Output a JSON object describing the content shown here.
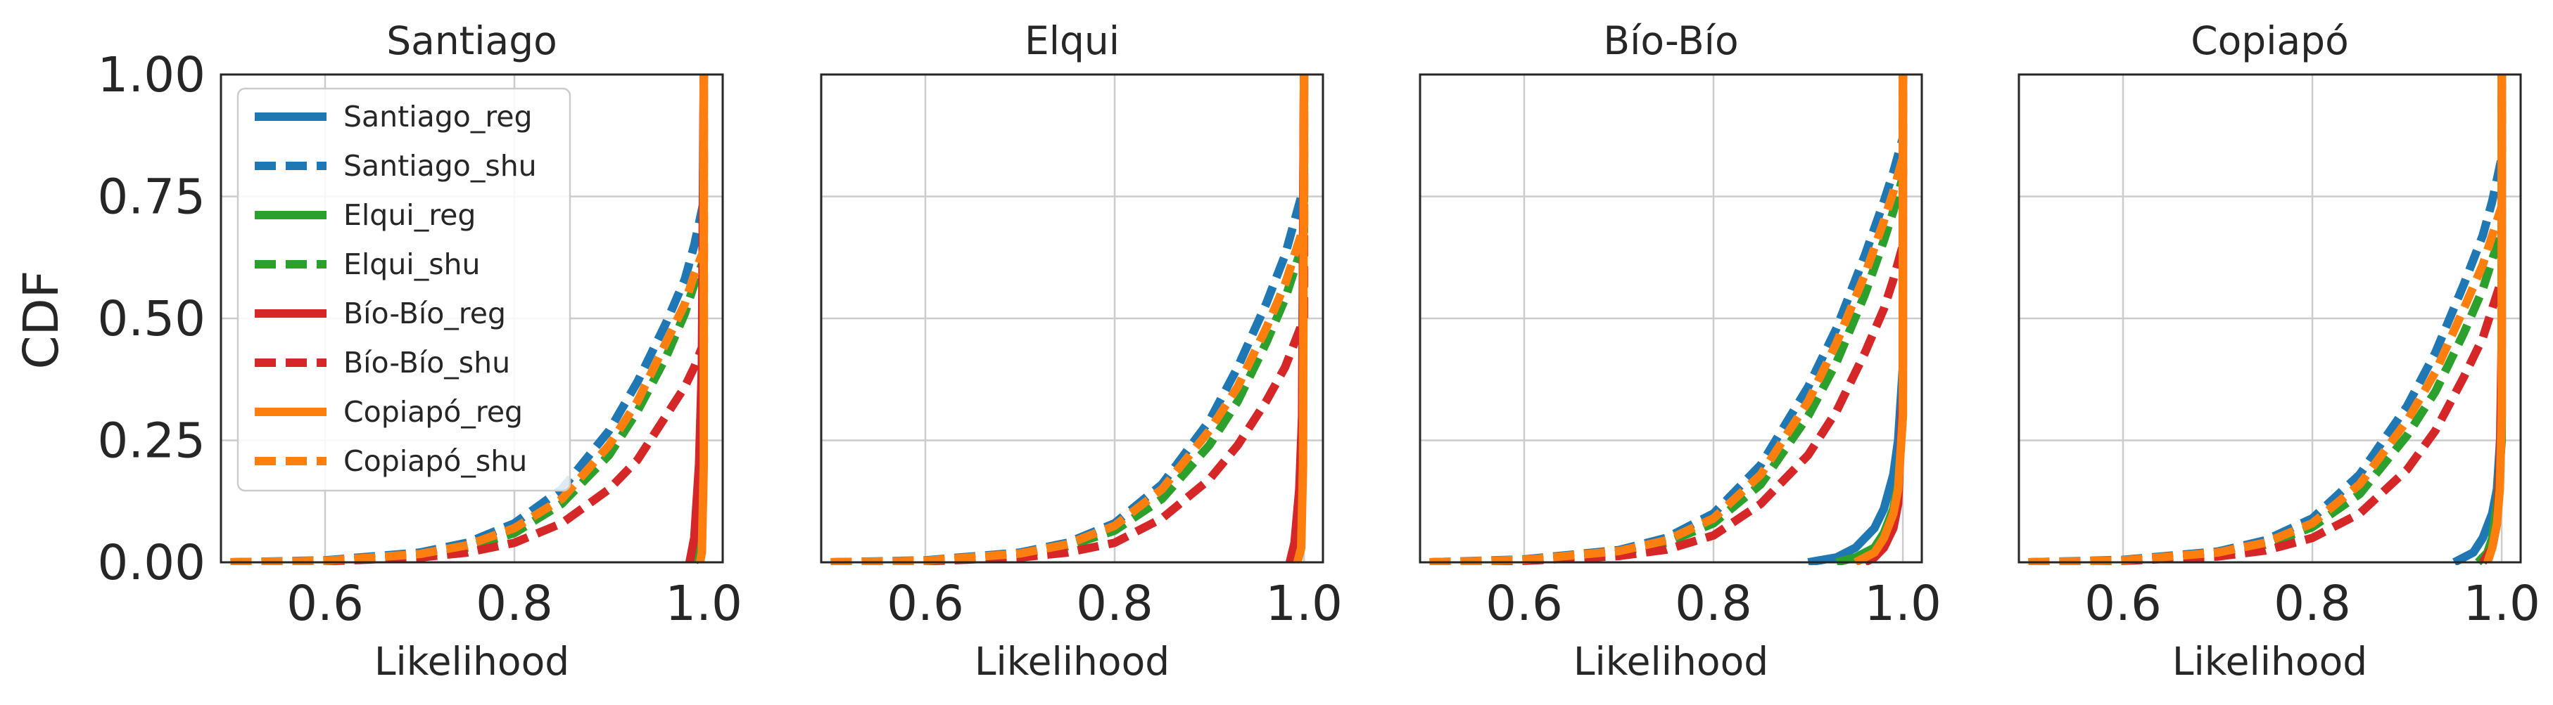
{
  "chart_data": [
    {
      "type": "line",
      "title": "Santiago",
      "xlabel": "Likelihood",
      "ylabel": "CDF",
      "xlim": [
        0.49,
        1.02
      ],
      "ylim": [
        0,
        1
      ],
      "xticks": [
        "0.6",
        "0.8",
        "1.0"
      ],
      "xtick_values": [
        0.6,
        0.8,
        1.0
      ],
      "yticks": [
        "0.00",
        "0.25",
        "0.50",
        "0.75",
        "1.00"
      ],
      "ytick_values": [
        0,
        0.25,
        0.5,
        0.75,
        1.0
      ],
      "grid": true,
      "legend_position": "upper-left",
      "series": [
        {
          "name": "Santiago_reg",
          "color": "#1f77b4",
          "style": "solid",
          "x": [
            0.99,
            0.995,
            0.997,
            0.999,
            1.0
          ],
          "y": [
            0,
            0.02,
            0.05,
            0.3,
            1.0
          ]
        },
        {
          "name": "Santiago_shu",
          "color": "#1f77b4",
          "style": "dashed",
          "x": [
            0.5,
            0.6,
            0.7,
            0.75,
            0.8,
            0.85,
            0.9,
            0.93,
            0.96,
            0.98,
            0.99,
            1.0,
            1.0
          ],
          "y": [
            0,
            0.004,
            0.02,
            0.04,
            0.08,
            0.15,
            0.27,
            0.37,
            0.49,
            0.58,
            0.65,
            0.74,
            1.0
          ]
        },
        {
          "name": "Elqui_reg",
          "color": "#2ca02c",
          "style": "solid",
          "x": [
            0.993,
            0.997,
            0.999,
            1.0
          ],
          "y": [
            0,
            0.03,
            0.2,
            1.0
          ]
        },
        {
          "name": "Elqui_shu",
          "color": "#2ca02c",
          "style": "dashed",
          "x": [
            0.5,
            0.6,
            0.7,
            0.75,
            0.8,
            0.85,
            0.9,
            0.93,
            0.96,
            0.98,
            0.99,
            1.0,
            1.0
          ],
          "y": [
            0,
            0.003,
            0.015,
            0.03,
            0.06,
            0.12,
            0.22,
            0.31,
            0.42,
            0.51,
            0.57,
            0.62,
            1.0
          ]
        },
        {
          "name": "Bío-Bío_reg",
          "color": "#d62728",
          "style": "solid",
          "x": [
            0.985,
            0.99,
            0.995,
            0.998,
            1.0
          ],
          "y": [
            0,
            0.05,
            0.2,
            0.4,
            1.0
          ]
        },
        {
          "name": "Bío-Bío_shu",
          "color": "#d62728",
          "style": "dashed",
          "x": [
            0.5,
            0.6,
            0.7,
            0.75,
            0.8,
            0.85,
            0.9,
            0.93,
            0.96,
            0.98,
            0.99,
            1.0,
            1.0
          ],
          "y": [
            0,
            0.002,
            0.01,
            0.02,
            0.04,
            0.08,
            0.15,
            0.21,
            0.3,
            0.36,
            0.4,
            0.45,
            1.0
          ]
        },
        {
          "name": "Copiapó_reg",
          "color": "#ff7f0e",
          "style": "solid",
          "x": [
            0.996,
            0.998,
            1.0,
            1.0
          ],
          "y": [
            0,
            0.02,
            0.2,
            1.0
          ]
        },
        {
          "name": "Copiapó_shu",
          "color": "#ff7f0e",
          "style": "dashed",
          "x": [
            0.5,
            0.6,
            0.7,
            0.75,
            0.8,
            0.85,
            0.9,
            0.93,
            0.96,
            0.98,
            0.99,
            1.0,
            1.0
          ],
          "y": [
            0,
            0.003,
            0.017,
            0.035,
            0.07,
            0.13,
            0.24,
            0.33,
            0.45,
            0.53,
            0.59,
            0.64,
            1.0
          ]
        }
      ]
    },
    {
      "type": "line",
      "title": "Elqui",
      "xlabel": "Likelihood",
      "ylabel": "",
      "xlim": [
        0.49,
        1.02
      ],
      "ylim": [
        0,
        1
      ],
      "xticks": [
        "0.6",
        "0.8",
        "1.0"
      ],
      "xtick_values": [
        0.6,
        0.8,
        1.0
      ],
      "yticks": [],
      "ytick_values": [
        0,
        0.25,
        0.5,
        0.75,
        1.0
      ],
      "grid": true,
      "series": [
        {
          "name": "Santiago_reg",
          "color": "#1f77b4",
          "style": "solid",
          "x": [
            0.985,
            0.99,
            0.995,
            0.998,
            1.0
          ],
          "y": [
            0,
            0.03,
            0.08,
            0.25,
            1.0
          ]
        },
        {
          "name": "Santiago_shu",
          "color": "#1f77b4",
          "style": "dashed",
          "x": [
            0.5,
            0.6,
            0.7,
            0.75,
            0.8,
            0.85,
            0.9,
            0.93,
            0.96,
            0.98,
            0.99,
            1.0,
            1.0
          ],
          "y": [
            0,
            0.004,
            0.02,
            0.04,
            0.08,
            0.16,
            0.29,
            0.4,
            0.53,
            0.63,
            0.7,
            0.77,
            1.0
          ]
        },
        {
          "name": "Elqui_reg",
          "color": "#2ca02c",
          "style": "solid",
          "x": [
            0.99,
            0.995,
            0.998,
            1.0
          ],
          "y": [
            0,
            0.03,
            0.15,
            1.0
          ]
        },
        {
          "name": "Elqui_shu",
          "color": "#2ca02c",
          "style": "dashed",
          "x": [
            0.5,
            0.6,
            0.7,
            0.75,
            0.8,
            0.85,
            0.9,
            0.93,
            0.96,
            0.98,
            0.99,
            1.0,
            1.0
          ],
          "y": [
            0,
            0.003,
            0.016,
            0.033,
            0.065,
            0.13,
            0.24,
            0.33,
            0.45,
            0.54,
            0.6,
            0.66,
            1.0
          ]
        },
        {
          "name": "Bío-Bío_reg",
          "color": "#d62728",
          "style": "solid",
          "x": [
            0.985,
            0.99,
            0.995,
            0.998,
            1.0
          ],
          "y": [
            0,
            0.04,
            0.15,
            0.3,
            1.0
          ]
        },
        {
          "name": "Bío-Bío_shu",
          "color": "#d62728",
          "style": "dashed",
          "x": [
            0.5,
            0.6,
            0.7,
            0.75,
            0.8,
            0.85,
            0.9,
            0.93,
            0.96,
            0.98,
            0.99,
            1.0,
            1.0
          ],
          "y": [
            0,
            0.002,
            0.01,
            0.02,
            0.04,
            0.09,
            0.17,
            0.24,
            0.33,
            0.4,
            0.45,
            0.5,
            1.0
          ]
        },
        {
          "name": "Copiapó_reg",
          "color": "#ff7f0e",
          "style": "solid",
          "x": [
            0.993,
            0.997,
            0.999,
            1.0
          ],
          "y": [
            0,
            0.03,
            0.2,
            1.0
          ]
        },
        {
          "name": "Copiapó_shu",
          "color": "#ff7f0e",
          "style": "dashed",
          "x": [
            0.5,
            0.6,
            0.7,
            0.75,
            0.8,
            0.85,
            0.9,
            0.93,
            0.96,
            0.98,
            0.99,
            1.0,
            1.0
          ],
          "y": [
            0,
            0.003,
            0.018,
            0.037,
            0.075,
            0.15,
            0.27,
            0.36,
            0.48,
            0.57,
            0.63,
            0.69,
            1.0
          ]
        }
      ]
    },
    {
      "type": "line",
      "title": "Bío-Bío",
      "xlabel": "Likelihood",
      "ylabel": "",
      "xlim": [
        0.49,
        1.02
      ],
      "ylim": [
        0,
        1
      ],
      "xticks": [
        "0.6",
        "0.8",
        "1.0"
      ],
      "xtick_values": [
        0.6,
        0.8,
        1.0
      ],
      "yticks": [],
      "ytick_values": [
        0,
        0.25,
        0.5,
        0.75,
        1.0
      ],
      "grid": true,
      "series": [
        {
          "name": "Santiago_reg",
          "color": "#1f77b4",
          "style": "solid",
          "x": [
            0.9,
            0.93,
            0.95,
            0.97,
            0.98,
            0.99,
            0.995,
            1.0,
            1.0
          ],
          "y": [
            0,
            0.01,
            0.03,
            0.07,
            0.11,
            0.18,
            0.25,
            0.4,
            1.0
          ]
        },
        {
          "name": "Santiago_shu",
          "color": "#1f77b4",
          "style": "dashed",
          "x": [
            0.5,
            0.6,
            0.7,
            0.75,
            0.8,
            0.85,
            0.9,
            0.93,
            0.96,
            0.98,
            0.99,
            1.0,
            1.0
          ],
          "y": [
            0,
            0.006,
            0.025,
            0.05,
            0.1,
            0.2,
            0.36,
            0.48,
            0.63,
            0.74,
            0.8,
            0.87,
            1.0
          ]
        },
        {
          "name": "Elqui_reg",
          "color": "#2ca02c",
          "style": "solid",
          "x": [
            0.93,
            0.95,
            0.97,
            0.98,
            0.99,
            0.995,
            1.0,
            1.0
          ],
          "y": [
            0,
            0.01,
            0.03,
            0.06,
            0.11,
            0.16,
            0.3,
            1.0
          ]
        },
        {
          "name": "Elqui_shu",
          "color": "#2ca02c",
          "style": "dashed",
          "x": [
            0.5,
            0.6,
            0.7,
            0.75,
            0.8,
            0.85,
            0.9,
            0.93,
            0.96,
            0.98,
            0.99,
            1.0,
            1.0
          ],
          "y": [
            0,
            0.004,
            0.02,
            0.04,
            0.08,
            0.16,
            0.3,
            0.41,
            0.55,
            0.66,
            0.72,
            0.79,
            1.0
          ]
        },
        {
          "name": "Bío-Bío_reg",
          "color": "#d62728",
          "style": "solid",
          "x": [
            0.96,
            0.97,
            0.98,
            0.99,
            0.995,
            1.0,
            1.0
          ],
          "y": [
            0,
            0.01,
            0.03,
            0.07,
            0.12,
            0.35,
            1.0
          ]
        },
        {
          "name": "Bío-Bío_shu",
          "color": "#d62728",
          "style": "dashed",
          "x": [
            0.5,
            0.6,
            0.7,
            0.75,
            0.8,
            0.85,
            0.9,
            0.93,
            0.96,
            0.98,
            0.99,
            1.0,
            1.0
          ],
          "y": [
            0,
            0.003,
            0.013,
            0.026,
            0.055,
            0.12,
            0.22,
            0.31,
            0.43,
            0.52,
            0.58,
            0.65,
            1.0
          ]
        },
        {
          "name": "Copiapó_reg",
          "color": "#ff7f0e",
          "style": "solid",
          "x": [
            0.95,
            0.97,
            0.98,
            0.99,
            0.995,
            1.0,
            1.0
          ],
          "y": [
            0,
            0.02,
            0.05,
            0.1,
            0.15,
            0.3,
            1.0
          ]
        },
        {
          "name": "Copiapó_shu",
          "color": "#ff7f0e",
          "style": "dashed",
          "x": [
            0.5,
            0.6,
            0.7,
            0.75,
            0.8,
            0.85,
            0.9,
            0.93,
            0.96,
            0.98,
            0.99,
            1.0,
            1.0
          ],
          "y": [
            0,
            0.005,
            0.023,
            0.045,
            0.09,
            0.18,
            0.33,
            0.45,
            0.59,
            0.7,
            0.76,
            0.83,
            1.0
          ]
        }
      ]
    },
    {
      "type": "line",
      "title": "Copiapó",
      "xlabel": "Likelihood",
      "ylabel": "",
      "xlim": [
        0.49,
        1.02
      ],
      "ylim": [
        0,
        1
      ],
      "xticks": [
        "0.6",
        "0.8",
        "1.0"
      ],
      "xtick_values": [
        0.6,
        0.8,
        1.0
      ],
      "yticks": [],
      "ytick_values": [
        0,
        0.25,
        0.5,
        0.75,
        1.0
      ],
      "grid": true,
      "series": [
        {
          "name": "Santiago_reg",
          "color": "#1f77b4",
          "style": "solid",
          "x": [
            0.95,
            0.97,
            0.98,
            0.99,
            0.995,
            1.0,
            1.0
          ],
          "y": [
            0,
            0.02,
            0.05,
            0.1,
            0.15,
            0.3,
            1.0
          ]
        },
        {
          "name": "Santiago_shu",
          "color": "#1f77b4",
          "style": "dashed",
          "x": [
            0.5,
            0.6,
            0.7,
            0.75,
            0.8,
            0.85,
            0.9,
            0.93,
            0.96,
            0.98,
            0.99,
            1.0,
            1.0
          ],
          "y": [
            0,
            0.005,
            0.022,
            0.045,
            0.09,
            0.18,
            0.32,
            0.43,
            0.57,
            0.67,
            0.74,
            0.83,
            1.0
          ]
        },
        {
          "name": "Elqui_reg",
          "color": "#2ca02c",
          "style": "solid",
          "x": [
            0.975,
            0.985,
            0.99,
            0.995,
            1.0,
            1.0
          ],
          "y": [
            0,
            0.02,
            0.05,
            0.12,
            0.25,
            1.0
          ]
        },
        {
          "name": "Elqui_shu",
          "color": "#2ca02c",
          "style": "dashed",
          "x": [
            0.5,
            0.6,
            0.7,
            0.75,
            0.8,
            0.85,
            0.9,
            0.93,
            0.96,
            0.98,
            0.99,
            1.0,
            1.0
          ],
          "y": [
            0,
            0.004,
            0.018,
            0.036,
            0.072,
            0.14,
            0.26,
            0.35,
            0.47,
            0.56,
            0.62,
            0.68,
            1.0
          ]
        },
        {
          "name": "Bío-Bío_reg",
          "color": "#d62728",
          "style": "solid",
          "x": [
            0.98,
            0.99,
            0.995,
            0.998,
            1.0,
            1.0
          ],
          "y": [
            0,
            0.03,
            0.08,
            0.2,
            0.45,
            1.0
          ]
        },
        {
          "name": "Bío-Bío_shu",
          "color": "#d62728",
          "style": "dashed",
          "x": [
            0.5,
            0.6,
            0.7,
            0.75,
            0.8,
            0.85,
            0.9,
            0.93,
            0.96,
            0.98,
            0.99,
            1.0,
            1.0
          ],
          "y": [
            0,
            0.003,
            0.012,
            0.024,
            0.05,
            0.1,
            0.19,
            0.27,
            0.38,
            0.46,
            0.52,
            0.58,
            1.0
          ]
        },
        {
          "name": "Copiapó_reg",
          "color": "#ff7f0e",
          "style": "solid",
          "x": [
            0.985,
            0.99,
            0.995,
            0.998,
            1.0,
            1.0
          ],
          "y": [
            0,
            0.03,
            0.08,
            0.15,
            0.3,
            1.0
          ]
        },
        {
          "name": "Copiapó_shu",
          "color": "#ff7f0e",
          "style": "dashed",
          "x": [
            0.5,
            0.6,
            0.7,
            0.75,
            0.8,
            0.85,
            0.9,
            0.93,
            0.96,
            0.98,
            0.99,
            1.0,
            1.0
          ],
          "y": [
            0,
            0.004,
            0.02,
            0.04,
            0.08,
            0.16,
            0.29,
            0.39,
            0.52,
            0.61,
            0.67,
            0.73,
            1.0
          ]
        }
      ]
    }
  ]
}
